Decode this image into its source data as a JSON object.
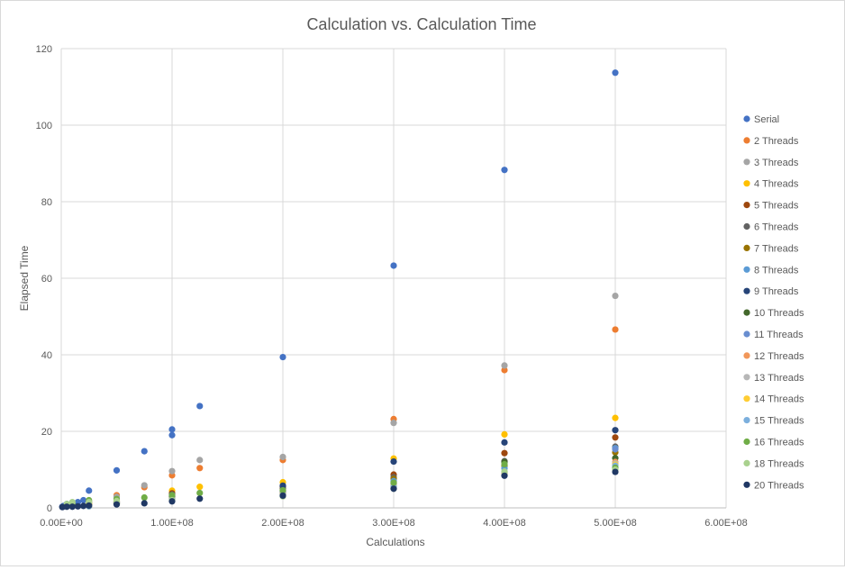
{
  "chart_data": {
    "type": "scatter",
    "title": "Calculation vs. Calculation Time",
    "xlabel": "Calculations",
    "ylabel": "Elapsed Time",
    "xlim": [
      0,
      600000000
    ],
    "ylim": [
      0,
      120
    ],
    "x_tick_labels": [
      "0.00E+00",
      "1.00E+08",
      "2.00E+08",
      "3.00E+08",
      "4.00E+08",
      "5.00E+08",
      "6.00E+08"
    ],
    "y_tick_labels": [
      "0",
      "20",
      "40",
      "60",
      "80",
      "100",
      "120"
    ],
    "grid": true,
    "legend_position": "right",
    "series": [
      {
        "name": "Serial",
        "color": "#4472C4",
        "points": [
          [
            1000000,
            0.3
          ],
          [
            2000000,
            0.5
          ],
          [
            5000000,
            1.0
          ],
          [
            10000000,
            1.2
          ],
          [
            15000000,
            1.5
          ],
          [
            20000000,
            2.0
          ],
          [
            25000000,
            4.5
          ],
          [
            50000000,
            9.8
          ],
          [
            75000000,
            14.8
          ],
          [
            100000000,
            20.5
          ],
          [
            100000000,
            19.0
          ],
          [
            125000000,
            26.6
          ],
          [
            200000000,
            39.4
          ],
          [
            300000000,
            63.3
          ],
          [
            400000000,
            88.3
          ],
          [
            500000000,
            113.7
          ]
        ]
      },
      {
        "name": "2 Threads",
        "color": "#ED7D31",
        "points": [
          [
            10000000,
            0.7
          ],
          [
            25000000,
            1.5
          ],
          [
            50000000,
            3.3
          ],
          [
            75000000,
            5.4
          ],
          [
            100000000,
            8.5
          ],
          [
            125000000,
            10.4
          ],
          [
            200000000,
            12.5
          ],
          [
            300000000,
            23.2
          ],
          [
            400000000,
            36.0
          ],
          [
            500000000,
            46.6
          ]
        ]
      },
      {
        "name": "3 Threads",
        "color": "#A5A5A5",
        "points": [
          [
            10000000,
            0.8
          ],
          [
            25000000,
            1.4
          ],
          [
            50000000,
            2.9
          ],
          [
            75000000,
            5.9
          ],
          [
            100000000,
            9.6
          ],
          [
            125000000,
            12.5
          ],
          [
            200000000,
            13.3
          ],
          [
            300000000,
            22.2
          ],
          [
            400000000,
            37.2
          ],
          [
            500000000,
            55.4
          ]
        ]
      },
      {
        "name": "4 Threads",
        "color": "#FFC000",
        "points": [
          [
            25000000,
            1.0
          ],
          [
            50000000,
            2.0
          ],
          [
            100000000,
            4.5
          ],
          [
            125000000,
            5.5
          ],
          [
            200000000,
            6.7
          ],
          [
            300000000,
            12.9
          ],
          [
            400000000,
            19.2
          ],
          [
            500000000,
            23.5
          ]
        ]
      },
      {
        "name": "5 Threads",
        "color": "#9E480E",
        "points": [
          [
            25000000,
            0.8
          ],
          [
            50000000,
            1.6
          ],
          [
            100000000,
            3.8
          ],
          [
            200000000,
            5.5
          ],
          [
            300000000,
            8.7
          ],
          [
            400000000,
            14.3
          ],
          [
            500000000,
            18.4
          ]
        ]
      },
      {
        "name": "6 Threads",
        "color": "#636363",
        "points": [
          [
            25000000,
            0.7
          ],
          [
            50000000,
            1.5
          ],
          [
            100000000,
            3.5
          ],
          [
            200000000,
            5.0
          ],
          [
            300000000,
            8.0
          ],
          [
            400000000,
            12.2
          ],
          [
            500000000,
            16.0
          ]
        ]
      },
      {
        "name": "7 Threads",
        "color": "#997300",
        "points": [
          [
            25000000,
            0.6
          ],
          [
            50000000,
            1.4
          ],
          [
            100000000,
            3.2
          ],
          [
            200000000,
            4.6
          ],
          [
            300000000,
            7.6
          ],
          [
            400000000,
            11.0
          ],
          [
            500000000,
            14.5
          ]
        ]
      },
      {
        "name": "8 Threads",
        "color": "#5B9BD5",
        "points": [
          [
            25000000,
            0.6
          ],
          [
            50000000,
            1.3
          ],
          [
            100000000,
            3.0
          ],
          [
            200000000,
            4.3
          ],
          [
            300000000,
            7.0
          ],
          [
            400000000,
            10.3
          ],
          [
            500000000,
            15.6
          ]
        ]
      },
      {
        "name": "9 Threads",
        "color": "#264478",
        "points": [
          [
            25000000,
            0.6
          ],
          [
            50000000,
            1.2
          ],
          [
            100000000,
            2.9
          ],
          [
            200000000,
            5.8
          ],
          [
            300000000,
            12.1
          ],
          [
            400000000,
            17.1
          ],
          [
            500000000,
            20.3
          ]
        ]
      },
      {
        "name": "10 Threads",
        "color": "#43682B",
        "points": [
          [
            25000000,
            0.5
          ],
          [
            50000000,
            1.2
          ],
          [
            100000000,
            2.8
          ],
          [
            200000000,
            4.0
          ],
          [
            300000000,
            6.5
          ],
          [
            400000000,
            12.0
          ],
          [
            500000000,
            13.0
          ]
        ]
      },
      {
        "name": "11 Threads",
        "color": "#698ED0",
        "points": [
          [
            25000000,
            0.5
          ],
          [
            50000000,
            1.1
          ],
          [
            100000000,
            2.6
          ],
          [
            200000000,
            3.8
          ],
          [
            300000000,
            6.2
          ],
          [
            400000000,
            9.3
          ],
          [
            500000000,
            15.3
          ]
        ]
      },
      {
        "name": "12 Threads",
        "color": "#F1975A",
        "points": [
          [
            25000000,
            0.5
          ],
          [
            50000000,
            1.1
          ],
          [
            100000000,
            2.5
          ],
          [
            200000000,
            3.7
          ],
          [
            300000000,
            6.0
          ],
          [
            400000000,
            9.0
          ],
          [
            500000000,
            12.0
          ]
        ]
      },
      {
        "name": "13 Threads",
        "color": "#B7B7B7",
        "points": [
          [
            25000000,
            0.5
          ],
          [
            50000000,
            1.0
          ],
          [
            100000000,
            2.4
          ],
          [
            200000000,
            3.6
          ],
          [
            300000000,
            5.8
          ],
          [
            400000000,
            8.8
          ],
          [
            500000000,
            11.6
          ]
        ]
      },
      {
        "name": "14 Threads",
        "color": "#FFCD33",
        "points": [
          [
            25000000,
            0.4
          ],
          [
            50000000,
            1.0
          ],
          [
            100000000,
            2.3
          ],
          [
            200000000,
            3.5
          ],
          [
            300000000,
            5.6
          ],
          [
            400000000,
            8.6
          ],
          [
            500000000,
            11.3
          ]
        ]
      },
      {
        "name": "15 Threads",
        "color": "#7CAFDD",
        "points": [
          [
            25000000,
            0.4
          ],
          [
            50000000,
            1.0
          ],
          [
            100000000,
            2.2
          ],
          [
            200000000,
            3.4
          ],
          [
            300000000,
            5.5
          ],
          [
            400000000,
            8.5
          ],
          [
            500000000,
            11.0
          ]
        ]
      },
      {
        "name": "16 Threads",
        "color": "#70AD47",
        "points": [
          [
            10000000,
            1.2
          ],
          [
            25000000,
            2.0
          ],
          [
            50000000,
            2.3
          ],
          [
            75000000,
            2.7
          ],
          [
            100000000,
            3.3
          ],
          [
            125000000,
            3.9
          ],
          [
            200000000,
            4.6
          ],
          [
            300000000,
            6.6
          ],
          [
            400000000,
            11.4
          ],
          [
            500000000,
            10.5
          ]
        ]
      },
      {
        "name": "18 Threads",
        "color": "#A9D18E",
        "points": [
          [
            5000000,
            1.0
          ],
          [
            10000000,
            1.5
          ],
          [
            25000000,
            1.5
          ],
          [
            50000000,
            1.8
          ],
          [
            100000000,
            2.0
          ],
          [
            200000000,
            3.0
          ],
          [
            300000000,
            5.0
          ],
          [
            400000000,
            9.5
          ],
          [
            500000000,
            10.0
          ]
        ]
      },
      {
        "name": "20 Threads",
        "color": "#203864",
        "points": [
          [
            1000000,
            0.2
          ],
          [
            5000000,
            0.3
          ],
          [
            10000000,
            0.3
          ],
          [
            15000000,
            0.4
          ],
          [
            20000000,
            0.5
          ],
          [
            25000000,
            0.6
          ],
          [
            50000000,
            0.9
          ],
          [
            75000000,
            1.2
          ],
          [
            100000000,
            1.7
          ],
          [
            125000000,
            2.4
          ],
          [
            200000000,
            3.2
          ],
          [
            300000000,
            5.0
          ],
          [
            400000000,
            8.4
          ],
          [
            500000000,
            9.4
          ]
        ]
      }
    ]
  }
}
